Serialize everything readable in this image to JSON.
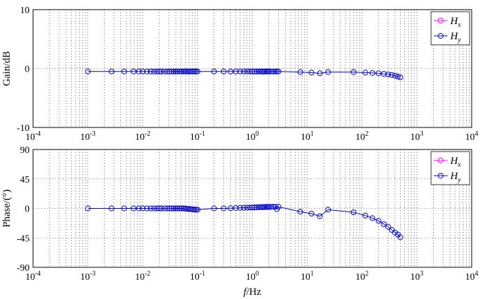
{
  "chart_data": [
    {
      "type": "line",
      "ylabel": "Gain/dB",
      "xlabel": "",
      "xscale": "log",
      "xlim": [
        0.0001,
        10000
      ],
      "ylim": [
        -10,
        10
      ],
      "y_ticks": [
        10,
        0,
        -10
      ],
      "x_tick_labels": [
        "10-4",
        "10-3",
        "10-2",
        "10-1",
        "100",
        "101",
        "102",
        "103",
        "104"
      ],
      "grid": true,
      "legend": {
        "position": "top-right",
        "entries": [
          {
            "main": "H",
            "sub": "x",
            "color": "#ff00ff"
          },
          {
            "main": "H",
            "sub": "y",
            "color": "#0000cc"
          }
        ]
      },
      "series": [
        {
          "name": "Hx",
          "color": "#ff00ff",
          "points": []
        },
        {
          "name": "Hy",
          "color": "#0000cc",
          "points": [
            [
              0.001,
              -0.5
            ],
            [
              0.0027,
              -0.5
            ],
            [
              0.0046,
              -0.5
            ],
            [
              0.0068,
              -0.5
            ],
            [
              0.0085,
              -0.5
            ],
            [
              0.01,
              -0.5
            ],
            [
              0.012,
              -0.5
            ],
            [
              0.014,
              -0.5
            ],
            [
              0.016,
              -0.5
            ],
            [
              0.018,
              -0.5
            ],
            [
              0.02,
              -0.5
            ],
            [
              0.022,
              -0.5
            ],
            [
              0.025,
              -0.5
            ],
            [
              0.028,
              -0.5
            ],
            [
              0.031,
              -0.5
            ],
            [
              0.034,
              -0.5
            ],
            [
              0.037,
              -0.5
            ],
            [
              0.04,
              -0.5
            ],
            [
              0.043,
              -0.5
            ],
            [
              0.047,
              -0.5
            ],
            [
              0.051,
              -0.5
            ],
            [
              0.055,
              -0.5
            ],
            [
              0.059,
              -0.5
            ],
            [
              0.063,
              -0.5
            ],
            [
              0.068,
              -0.5
            ],
            [
              0.073,
              -0.5
            ],
            [
              0.078,
              -0.5
            ],
            [
              0.083,
              -0.5
            ],
            [
              0.088,
              -0.5
            ],
            [
              0.094,
              -0.5
            ],
            [
              0.1,
              -0.5
            ],
            [
              0.2,
              -0.5
            ],
            [
              0.3,
              -0.5
            ],
            [
              0.4,
              -0.5
            ],
            [
              0.5,
              -0.5
            ],
            [
              0.6,
              -0.5
            ],
            [
              0.7,
              -0.5
            ],
            [
              0.8,
              -0.5
            ],
            [
              0.9,
              -0.5
            ],
            [
              1.0,
              -0.5
            ],
            [
              1.1,
              -0.5
            ],
            [
              1.2,
              -0.5
            ],
            [
              1.3,
              -0.5
            ],
            [
              1.4,
              -0.5
            ],
            [
              1.5,
              -0.5
            ],
            [
              1.6,
              -0.5
            ],
            [
              1.7,
              -0.5
            ],
            [
              1.8,
              -0.5
            ],
            [
              1.9,
              -0.5
            ],
            [
              2.0,
              -0.5
            ],
            [
              2.2,
              -0.5
            ],
            [
              2.4,
              -0.5
            ],
            [
              2.6,
              -0.5
            ],
            [
              2.8,
              -0.5
            ],
            [
              3.0,
              -0.5
            ],
            [
              7.5,
              -0.6
            ],
            [
              12,
              -0.7
            ],
            [
              17,
              -0.8
            ],
            [
              24,
              -0.6
            ],
            [
              70,
              -0.6
            ],
            [
              115,
              -0.7
            ],
            [
              155,
              -0.75
            ],
            [
              200,
              -0.8
            ],
            [
              250,
              -0.9
            ],
            [
              300,
              -1.0
            ],
            [
              350,
              -1.1
            ],
            [
              400,
              -1.2
            ],
            [
              450,
              -1.35
            ],
            [
              500,
              -1.5
            ]
          ]
        }
      ]
    },
    {
      "type": "line",
      "ylabel": "Phase/(°)",
      "xlabel_main": "f",
      "xlabel_unit": "/Hz",
      "xscale": "log",
      "xlim": [
        0.0001,
        10000
      ],
      "ylim": [
        -90,
        90
      ],
      "y_ticks": [
        90,
        45,
        0,
        -45,
        -90
      ],
      "x_tick_labels": [
        "10-4",
        "10-3",
        "10-2",
        "10-1",
        "100",
        "101",
        "102",
        "103",
        "104"
      ],
      "grid": true,
      "legend": {
        "position": "top-right",
        "entries": [
          {
            "main": "H",
            "sub": "x",
            "color": "#ff00ff"
          },
          {
            "main": "H",
            "sub": "y",
            "color": "#0000cc"
          }
        ]
      },
      "series": [
        {
          "name": "Hx",
          "color": "#ff00ff",
          "points": []
        },
        {
          "name": "Hy",
          "color": "#0000cc",
          "points": [
            [
              0.001,
              0
            ],
            [
              0.0027,
              0
            ],
            [
              0.0046,
              0
            ],
            [
              0.0068,
              0
            ],
            [
              0.0085,
              0
            ],
            [
              0.01,
              0
            ],
            [
              0.012,
              0
            ],
            [
              0.014,
              0
            ],
            [
              0.016,
              0
            ],
            [
              0.018,
              0
            ],
            [
              0.02,
              0
            ],
            [
              0.022,
              0
            ],
            [
              0.025,
              0
            ],
            [
              0.028,
              0
            ],
            [
              0.031,
              0
            ],
            [
              0.034,
              0
            ],
            [
              0.037,
              0
            ],
            [
              0.04,
              0
            ],
            [
              0.043,
              0
            ],
            [
              0.047,
              0
            ],
            [
              0.051,
              0
            ],
            [
              0.055,
              0
            ],
            [
              0.059,
              -0.3
            ],
            [
              0.063,
              -0.5
            ],
            [
              0.068,
              -0.8
            ],
            [
              0.073,
              -1
            ],
            [
              0.078,
              -1.2
            ],
            [
              0.083,
              -1.5
            ],
            [
              0.088,
              -1.7
            ],
            [
              0.094,
              -2
            ],
            [
              0.1,
              -2
            ],
            [
              0.2,
              0
            ],
            [
              0.3,
              0
            ],
            [
              0.4,
              0.3
            ],
            [
              0.5,
              0.5
            ],
            [
              0.6,
              0.8
            ],
            [
              0.7,
              1
            ],
            [
              0.8,
              1.2
            ],
            [
              0.9,
              1.4
            ],
            [
              1.0,
              1.5
            ],
            [
              1.1,
              1.6
            ],
            [
              1.2,
              1.7
            ],
            [
              1.3,
              1.8
            ],
            [
              1.4,
              1.9
            ],
            [
              1.5,
              2
            ],
            [
              1.6,
              2
            ],
            [
              1.7,
              2.1
            ],
            [
              1.8,
              2.2
            ],
            [
              1.9,
              2.2
            ],
            [
              2.0,
              2.3
            ],
            [
              2.2,
              2.4
            ],
            [
              2.4,
              2.5
            ],
            [
              2.6,
              2.5
            ],
            [
              2.8,
              -1
            ],
            [
              3.0,
              2.5
            ],
            [
              7.5,
              -5
            ],
            [
              12,
              -8
            ],
            [
              17,
              -12
            ],
            [
              24,
              -2
            ],
            [
              70,
              -6
            ],
            [
              115,
              -11
            ],
            [
              155,
              -15
            ],
            [
              200,
              -19
            ],
            [
              250,
              -24
            ],
            [
              300,
              -28
            ],
            [
              350,
              -33
            ],
            [
              400,
              -37
            ],
            [
              450,
              -40
            ],
            [
              500,
              -44
            ]
          ]
        }
      ]
    }
  ]
}
